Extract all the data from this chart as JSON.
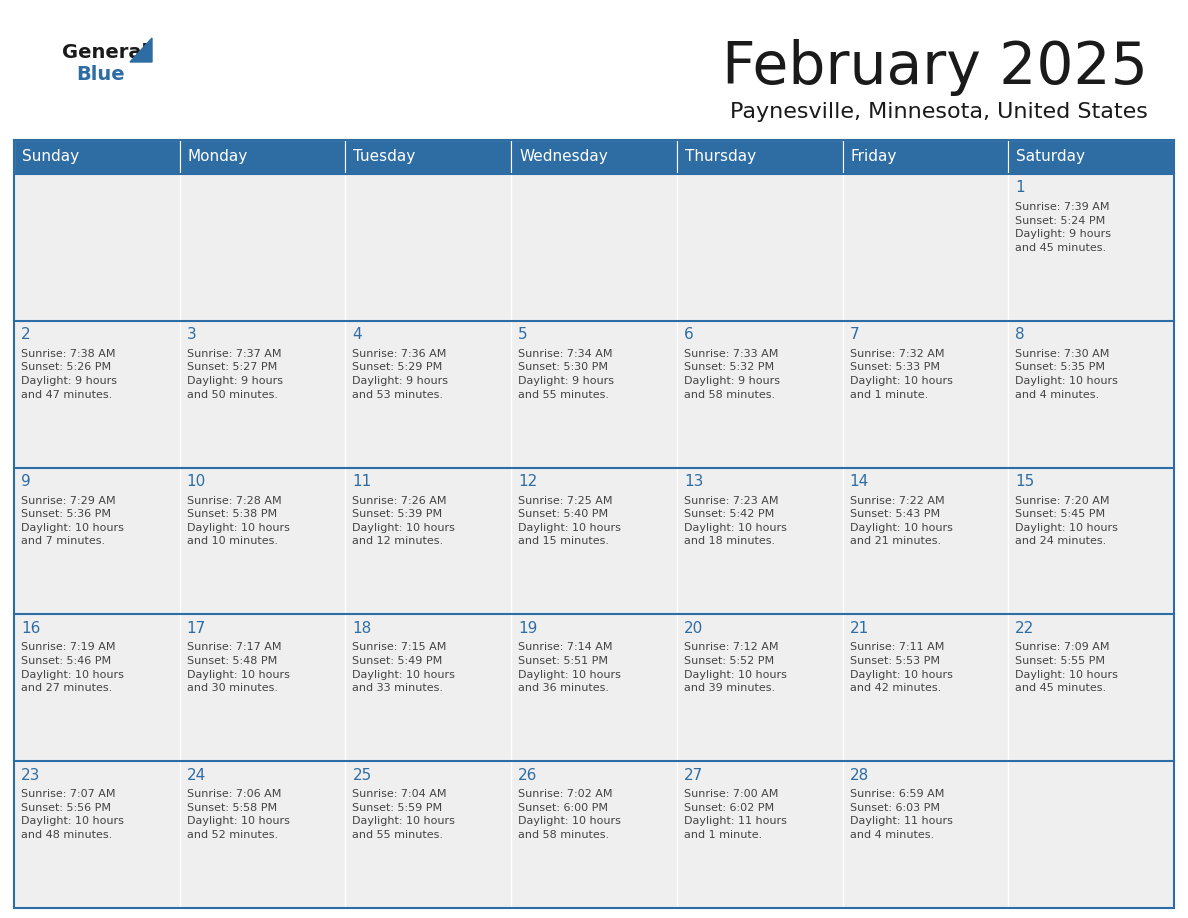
{
  "title": "February 2025",
  "subtitle": "Paynesville, Minnesota, United States",
  "header_bg": "#2E6DA4",
  "header_text_color": "#FFFFFF",
  "cell_bg": "#EFEFEF",
  "day_number_color": "#2E6DA4",
  "text_color": "#444444",
  "border_color": "#2E6DA4",
  "days_of_week": [
    "Sunday",
    "Monday",
    "Tuesday",
    "Wednesday",
    "Thursday",
    "Friday",
    "Saturday"
  ],
  "weeks": [
    [
      {
        "day": null,
        "info": null
      },
      {
        "day": null,
        "info": null
      },
      {
        "day": null,
        "info": null
      },
      {
        "day": null,
        "info": null
      },
      {
        "day": null,
        "info": null
      },
      {
        "day": null,
        "info": null
      },
      {
        "day": 1,
        "info": "Sunrise: 7:39 AM\nSunset: 5:24 PM\nDaylight: 9 hours\nand 45 minutes."
      }
    ],
    [
      {
        "day": 2,
        "info": "Sunrise: 7:38 AM\nSunset: 5:26 PM\nDaylight: 9 hours\nand 47 minutes."
      },
      {
        "day": 3,
        "info": "Sunrise: 7:37 AM\nSunset: 5:27 PM\nDaylight: 9 hours\nand 50 minutes."
      },
      {
        "day": 4,
        "info": "Sunrise: 7:36 AM\nSunset: 5:29 PM\nDaylight: 9 hours\nand 53 minutes."
      },
      {
        "day": 5,
        "info": "Sunrise: 7:34 AM\nSunset: 5:30 PM\nDaylight: 9 hours\nand 55 minutes."
      },
      {
        "day": 6,
        "info": "Sunrise: 7:33 AM\nSunset: 5:32 PM\nDaylight: 9 hours\nand 58 minutes."
      },
      {
        "day": 7,
        "info": "Sunrise: 7:32 AM\nSunset: 5:33 PM\nDaylight: 10 hours\nand 1 minute."
      },
      {
        "day": 8,
        "info": "Sunrise: 7:30 AM\nSunset: 5:35 PM\nDaylight: 10 hours\nand 4 minutes."
      }
    ],
    [
      {
        "day": 9,
        "info": "Sunrise: 7:29 AM\nSunset: 5:36 PM\nDaylight: 10 hours\nand 7 minutes."
      },
      {
        "day": 10,
        "info": "Sunrise: 7:28 AM\nSunset: 5:38 PM\nDaylight: 10 hours\nand 10 minutes."
      },
      {
        "day": 11,
        "info": "Sunrise: 7:26 AM\nSunset: 5:39 PM\nDaylight: 10 hours\nand 12 minutes."
      },
      {
        "day": 12,
        "info": "Sunrise: 7:25 AM\nSunset: 5:40 PM\nDaylight: 10 hours\nand 15 minutes."
      },
      {
        "day": 13,
        "info": "Sunrise: 7:23 AM\nSunset: 5:42 PM\nDaylight: 10 hours\nand 18 minutes."
      },
      {
        "day": 14,
        "info": "Sunrise: 7:22 AM\nSunset: 5:43 PM\nDaylight: 10 hours\nand 21 minutes."
      },
      {
        "day": 15,
        "info": "Sunrise: 7:20 AM\nSunset: 5:45 PM\nDaylight: 10 hours\nand 24 minutes."
      }
    ],
    [
      {
        "day": 16,
        "info": "Sunrise: 7:19 AM\nSunset: 5:46 PM\nDaylight: 10 hours\nand 27 minutes."
      },
      {
        "day": 17,
        "info": "Sunrise: 7:17 AM\nSunset: 5:48 PM\nDaylight: 10 hours\nand 30 minutes."
      },
      {
        "day": 18,
        "info": "Sunrise: 7:15 AM\nSunset: 5:49 PM\nDaylight: 10 hours\nand 33 minutes."
      },
      {
        "day": 19,
        "info": "Sunrise: 7:14 AM\nSunset: 5:51 PM\nDaylight: 10 hours\nand 36 minutes."
      },
      {
        "day": 20,
        "info": "Sunrise: 7:12 AM\nSunset: 5:52 PM\nDaylight: 10 hours\nand 39 minutes."
      },
      {
        "day": 21,
        "info": "Sunrise: 7:11 AM\nSunset: 5:53 PM\nDaylight: 10 hours\nand 42 minutes."
      },
      {
        "day": 22,
        "info": "Sunrise: 7:09 AM\nSunset: 5:55 PM\nDaylight: 10 hours\nand 45 minutes."
      }
    ],
    [
      {
        "day": 23,
        "info": "Sunrise: 7:07 AM\nSunset: 5:56 PM\nDaylight: 10 hours\nand 48 minutes."
      },
      {
        "day": 24,
        "info": "Sunrise: 7:06 AM\nSunset: 5:58 PM\nDaylight: 10 hours\nand 52 minutes."
      },
      {
        "day": 25,
        "info": "Sunrise: 7:04 AM\nSunset: 5:59 PM\nDaylight: 10 hours\nand 55 minutes."
      },
      {
        "day": 26,
        "info": "Sunrise: 7:02 AM\nSunset: 6:00 PM\nDaylight: 10 hours\nand 58 minutes."
      },
      {
        "day": 27,
        "info": "Sunrise: 7:00 AM\nSunset: 6:02 PM\nDaylight: 11 hours\nand 1 minute."
      },
      {
        "day": 28,
        "info": "Sunrise: 6:59 AM\nSunset: 6:03 PM\nDaylight: 11 hours\nand 4 minutes."
      },
      {
        "day": null,
        "info": null
      }
    ]
  ]
}
